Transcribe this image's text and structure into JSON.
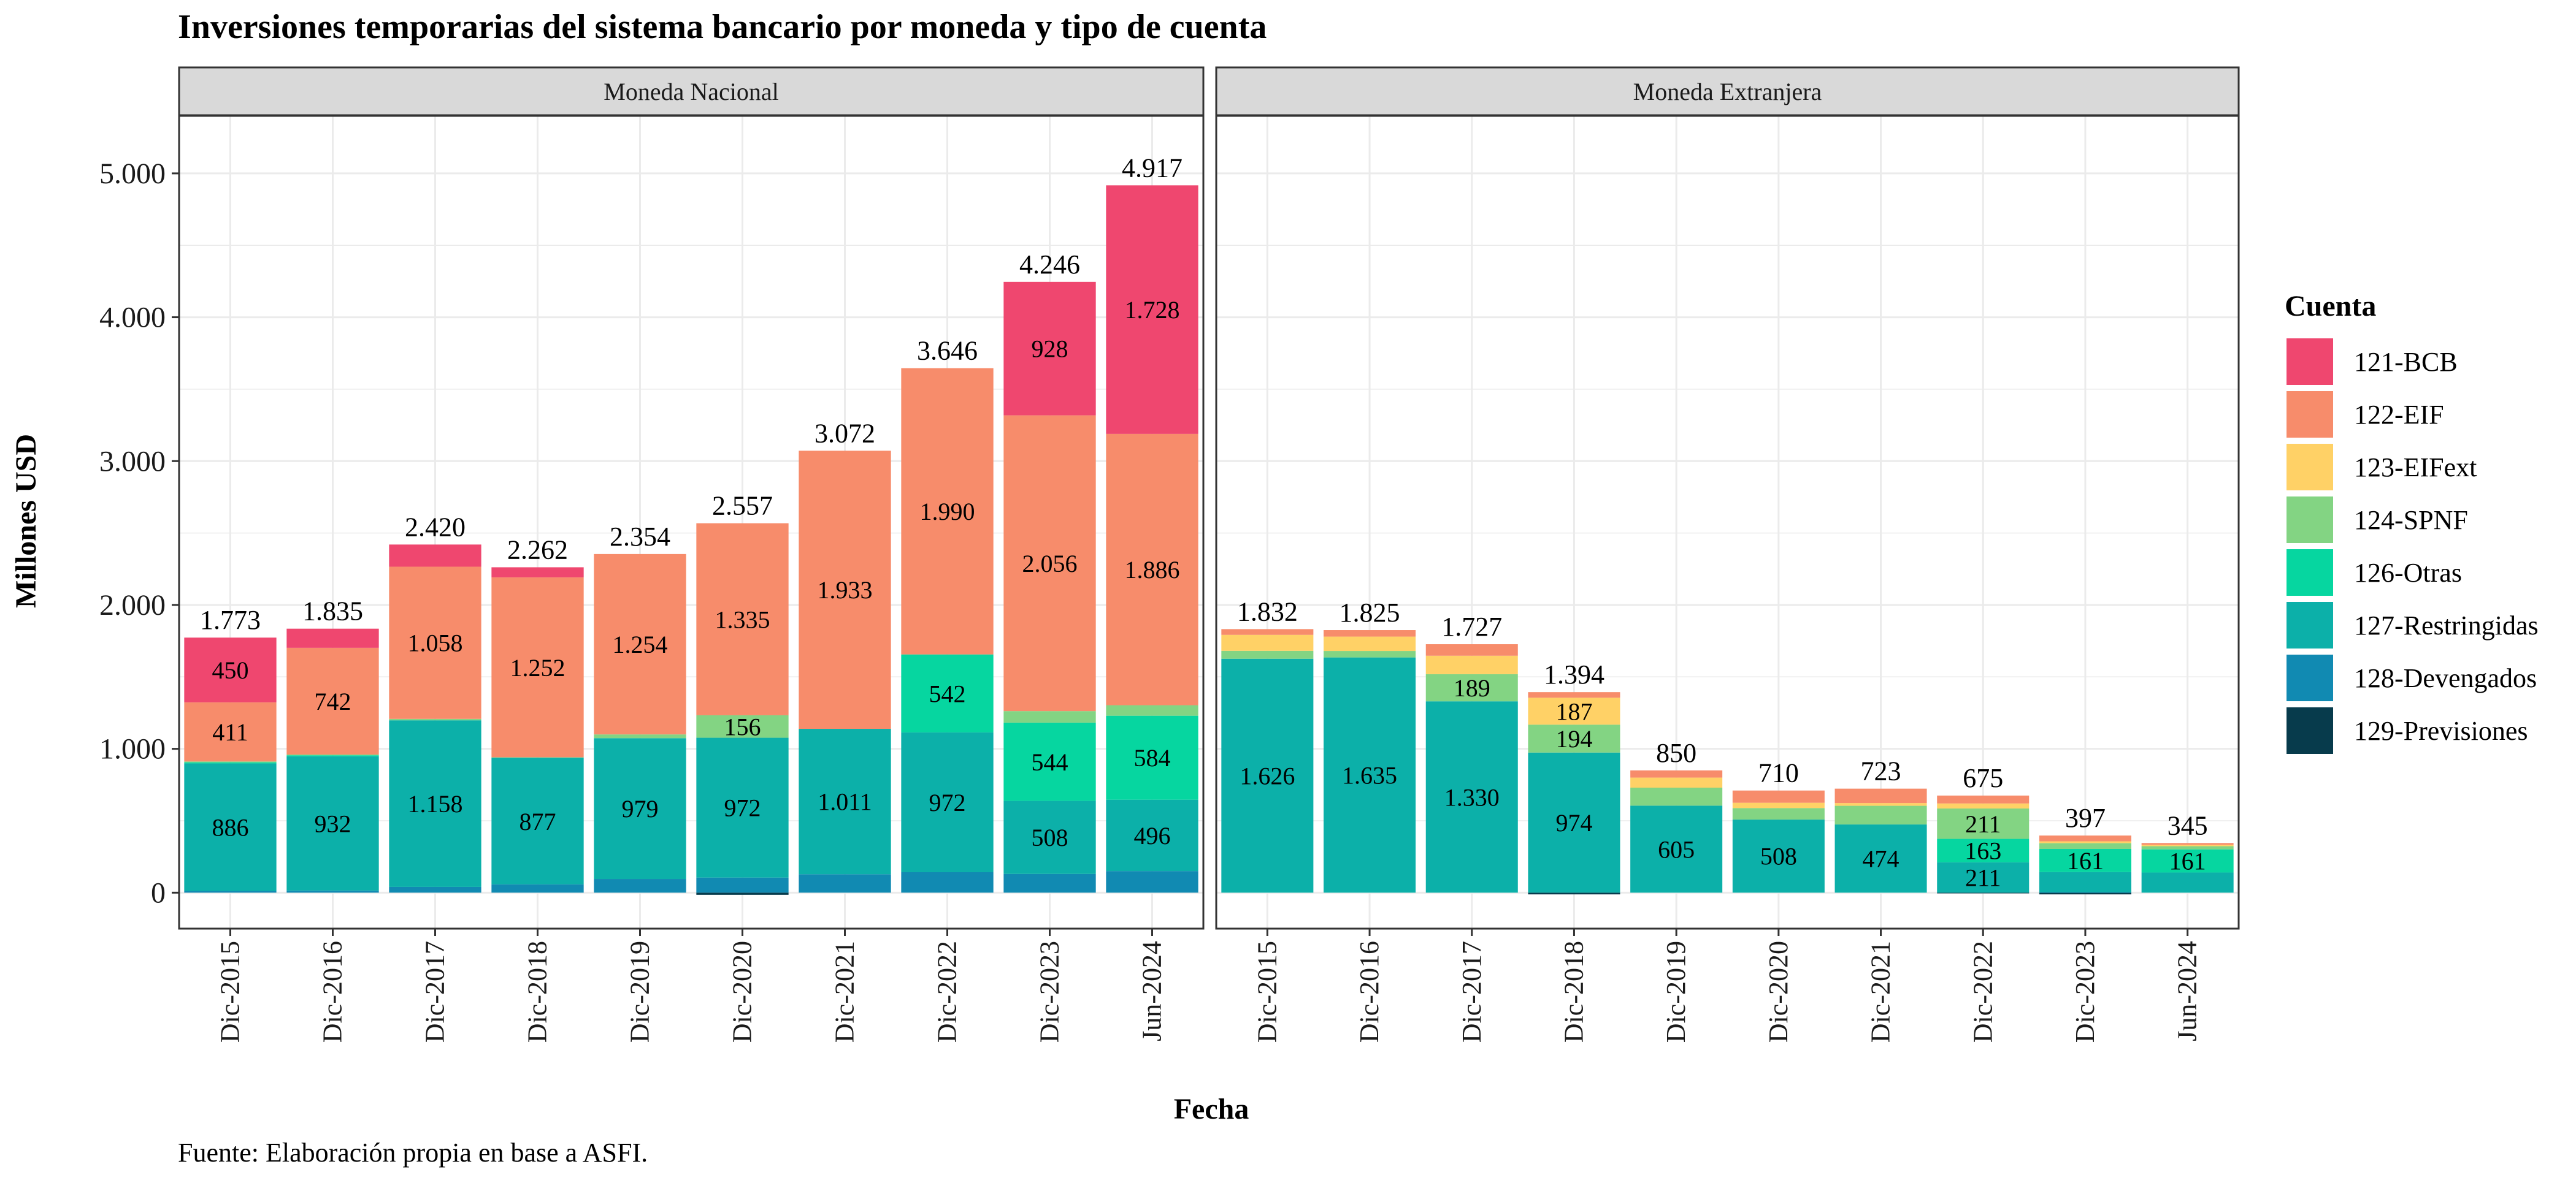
{
  "chart_data": {
    "type": "bar",
    "stacked": true,
    "title": "Inversiones temporarias del sistema bancario por moneda y tipo de cuenta",
    "caption": "Fuente: Elaboración propia en base a ASFI.",
    "xlabel": "Fecha",
    "ylabel": "Millones USD",
    "ylim": [
      -250,
      5400
    ],
    "yticks": [
      0,
      1000,
      2000,
      3000,
      4000,
      5000
    ],
    "ytick_labels": [
      "0",
      "1.000",
      "2.000",
      "3.000",
      "4.000",
      "5.000"
    ],
    "grid": true,
    "legend": {
      "title": "Cuenta",
      "placement": "right",
      "entries": [
        {
          "name": "121-BCB",
          "color": "#EF476F"
        },
        {
          "name": "122-EIF",
          "color": "#F78C6B"
        },
        {
          "name": "123-EIFext",
          "color": "#FFD166"
        },
        {
          "name": "124-SPNF",
          "color": "#83D483"
        },
        {
          "name": "126-Otras",
          "color": "#06D6A0"
        },
        {
          "name": "127-Restringidas",
          "color": "#0CB0A9"
        },
        {
          "name": "128-Devengados",
          "color": "#118AB2"
        },
        {
          "name": "129-Previsiones",
          "color": "#073B4C"
        }
      ]
    },
    "categories": [
      "Dic-2015",
      "Dic-2016",
      "Dic-2017",
      "Dic-2018",
      "Dic-2019",
      "Dic-2020",
      "Dic-2021",
      "Dic-2022",
      "Dic-2023",
      "Jun-2024"
    ],
    "panels": [
      {
        "title": "Moneda Nacional",
        "totals": [
          "1.773",
          "1.835",
          "2.420",
          "2.262",
          "2.354",
          "2.557",
          "3.072",
          "3.646",
          "4.246",
          "4.917"
        ],
        "bars": [
          {
            "neg": [],
            "pos": [
              {
                "s": "128-Devengados",
                "v": 12
              },
              {
                "s": "127-Restringidas",
                "v": 886,
                "label": "886"
              },
              {
                "s": "126-Otras",
                "v": 8
              },
              {
                "s": "124-SPNF",
                "v": 6
              },
              {
                "s": "122-EIF",
                "v": 411,
                "label": "411"
              },
              {
                "s": "121-BCB",
                "v": 450,
                "label": "450"
              }
            ]
          },
          {
            "neg": [],
            "pos": [
              {
                "s": "128-Devengados",
                "v": 15
              },
              {
                "s": "127-Restringidas",
                "v": 932,
                "label": "932"
              },
              {
                "s": "126-Otras",
                "v": 8
              },
              {
                "s": "124-SPNF",
                "v": 5
              },
              {
                "s": "122-EIF",
                "v": 742,
                "label": "742"
              },
              {
                "s": "121-BCB",
                "v": 133
              }
            ]
          },
          {
            "neg": [],
            "pos": [
              {
                "s": "128-Devengados",
                "v": 40
              },
              {
                "s": "127-Restringidas",
                "v": 1158,
                "label": "1.158"
              },
              {
                "s": "124-SPNF",
                "v": 10
              },
              {
                "s": "122-EIF",
                "v": 1058,
                "label": "1.058"
              },
              {
                "s": "121-BCB",
                "v": 154
              }
            ]
          },
          {
            "neg": [],
            "pos": [
              {
                "s": "128-Devengados",
                "v": 58
              },
              {
                "s": "127-Restringidas",
                "v": 877,
                "label": "877"
              },
              {
                "s": "126-Otras",
                "v": 5
              },
              {
                "s": "122-EIF",
                "v": 1252,
                "label": "1.252"
              },
              {
                "s": "121-BCB",
                "v": 70
              }
            ]
          },
          {
            "neg": [],
            "pos": [
              {
                "s": "128-Devengados",
                "v": 95
              },
              {
                "s": "127-Restringidas",
                "v": 979,
                "label": "979"
              },
              {
                "s": "124-SPNF",
                "v": 26
              },
              {
                "s": "122-EIF",
                "v": 1254,
                "label": "1.254"
              }
            ]
          },
          {
            "neg": [
              {
                "s": "129-Previsiones",
                "v": 15
              }
            ],
            "pos": [
              {
                "s": "128-Devengados",
                "v": 105
              },
              {
                "s": "127-Restringidas",
                "v": 972,
                "label": "972"
              },
              {
                "s": "124-SPNF",
                "v": 156,
                "label": "156"
              },
              {
                "s": "122-EIF",
                "v": 1335,
                "label": "1.335"
              }
            ]
          },
          {
            "neg": [],
            "pos": [
              {
                "s": "128-Devengados",
                "v": 128
              },
              {
                "s": "127-Restringidas",
                "v": 1011,
                "label": "1.011"
              },
              {
                "s": "122-EIF",
                "v": 1933,
                "label": "1.933"
              }
            ]
          },
          {
            "neg": [],
            "pos": [
              {
                "s": "128-Devengados",
                "v": 142
              },
              {
                "s": "127-Restringidas",
                "v": 972,
                "label": "972"
              },
              {
                "s": "126-Otras",
                "v": 542,
                "label": "542"
              },
              {
                "s": "122-EIF",
                "v": 1990,
                "label": "1.990"
              }
            ]
          },
          {
            "neg": [],
            "pos": [
              {
                "s": "128-Devengados",
                "v": 130
              },
              {
                "s": "127-Restringidas",
                "v": 508,
                "label": "508"
              },
              {
                "s": "126-Otras",
                "v": 544,
                "label": "544"
              },
              {
                "s": "124-SPNF",
                "v": 80
              },
              {
                "s": "122-EIF",
                "v": 2056,
                "label": "2.056"
              },
              {
                "s": "121-BCB",
                "v": 928,
                "label": "928"
              }
            ]
          },
          {
            "neg": [],
            "pos": [
              {
                "s": "128-Devengados",
                "v": 150
              },
              {
                "s": "127-Restringidas",
                "v": 496,
                "label": "496"
              },
              {
                "s": "126-Otras",
                "v": 584,
                "label": "584"
              },
              {
                "s": "124-SPNF",
                "v": 73
              },
              {
                "s": "122-EIF",
                "v": 1886,
                "label": "1.886"
              },
              {
                "s": "121-BCB",
                "v": 1728,
                "label": "1.728"
              }
            ]
          }
        ]
      },
      {
        "title": "Moneda Extranjera",
        "totals": [
          "1.832",
          "1.825",
          "1.727",
          "1.394",
          "850",
          "710",
          "723",
          "675",
          "397",
          "345"
        ],
        "bars": [
          {
            "neg": [],
            "pos": [
              {
                "s": "127-Restringidas",
                "v": 1626,
                "label": "1.626"
              },
              {
                "s": "124-SPNF",
                "v": 55
              },
              {
                "s": "123-EIFext",
                "v": 111
              },
              {
                "s": "122-EIF",
                "v": 40
              }
            ]
          },
          {
            "neg": [],
            "pos": [
              {
                "s": "127-Restringidas",
                "v": 1635,
                "label": "1.635"
              },
              {
                "s": "124-SPNF",
                "v": 45
              },
              {
                "s": "123-EIFext",
                "v": 100
              },
              {
                "s": "122-EIF",
                "v": 45
              }
            ]
          },
          {
            "neg": [],
            "pos": [
              {
                "s": "127-Restringidas",
                "v": 1330,
                "label": "1.330"
              },
              {
                "s": "124-SPNF",
                "v": 189,
                "label": "189"
              },
              {
                "s": "123-EIFext",
                "v": 128
              },
              {
                "s": "122-EIF",
                "v": 80
              }
            ]
          },
          {
            "neg": [
              {
                "s": "129-Previsiones",
                "v": 12
              }
            ],
            "pos": [
              {
                "s": "127-Restringidas",
                "v": 974,
                "label": "974"
              },
              {
                "s": "124-SPNF",
                "v": 194,
                "label": "194"
              },
              {
                "s": "123-EIFext",
                "v": 187,
                "label": "187"
              },
              {
                "s": "122-EIF",
                "v": 39
              }
            ]
          },
          {
            "neg": [],
            "pos": [
              {
                "s": "127-Restringidas",
                "v": 605,
                "label": "605"
              },
              {
                "s": "124-SPNF",
                "v": 125
              },
              {
                "s": "123-EIFext",
                "v": 70
              },
              {
                "s": "122-EIF",
                "v": 50
              }
            ]
          },
          {
            "neg": [],
            "pos": [
              {
                "s": "127-Restringidas",
                "v": 508,
                "label": "508"
              },
              {
                "s": "124-SPNF",
                "v": 80
              },
              {
                "s": "123-EIFext",
                "v": 37
              },
              {
                "s": "122-EIF",
                "v": 85
              }
            ]
          },
          {
            "neg": [],
            "pos": [
              {
                "s": "127-Restringidas",
                "v": 474,
                "label": "474"
              },
              {
                "s": "124-SPNF",
                "v": 130
              },
              {
                "s": "123-EIFext",
                "v": 19
              },
              {
                "s": "122-EIF",
                "v": 100
              }
            ]
          },
          {
            "neg": [
              {
                "s": "129-Previsiones",
                "v": 5
              }
            ],
            "pos": [
              {
                "s": "127-Restringidas",
                "v": 211,
                "label": "211"
              },
              {
                "s": "126-Otras",
                "v": 163,
                "label": "163"
              },
              {
                "s": "124-SPNF",
                "v": 211,
                "label": "211"
              },
              {
                "s": "123-EIFext",
                "v": 35
              },
              {
                "s": "122-EIF",
                "v": 55
              }
            ]
          },
          {
            "neg": [
              {
                "s": "129-Previsiones",
                "v": 12
              }
            ],
            "pos": [
              {
                "s": "128-Devengados",
                "v": 3
              },
              {
                "s": "127-Restringidas",
                "v": 140
              },
              {
                "s": "126-Otras",
                "v": 161,
                "label": "161"
              },
              {
                "s": "124-SPNF",
                "v": 40
              },
              {
                "s": "123-EIFext",
                "v": 13
              },
              {
                "s": "122-EIF",
                "v": 40
              }
            ]
          },
          {
            "neg": [],
            "pos": [
              {
                "s": "127-Restringidas",
                "v": 140
              },
              {
                "s": "126-Otras",
                "v": 161,
                "label": "161"
              },
              {
                "s": "124-SPNF",
                "v": 22
              },
              {
                "s": "123-EIFext",
                "v": 10
              },
              {
                "s": "122-EIF",
                "v": 12
              }
            ]
          }
        ]
      }
    ]
  }
}
